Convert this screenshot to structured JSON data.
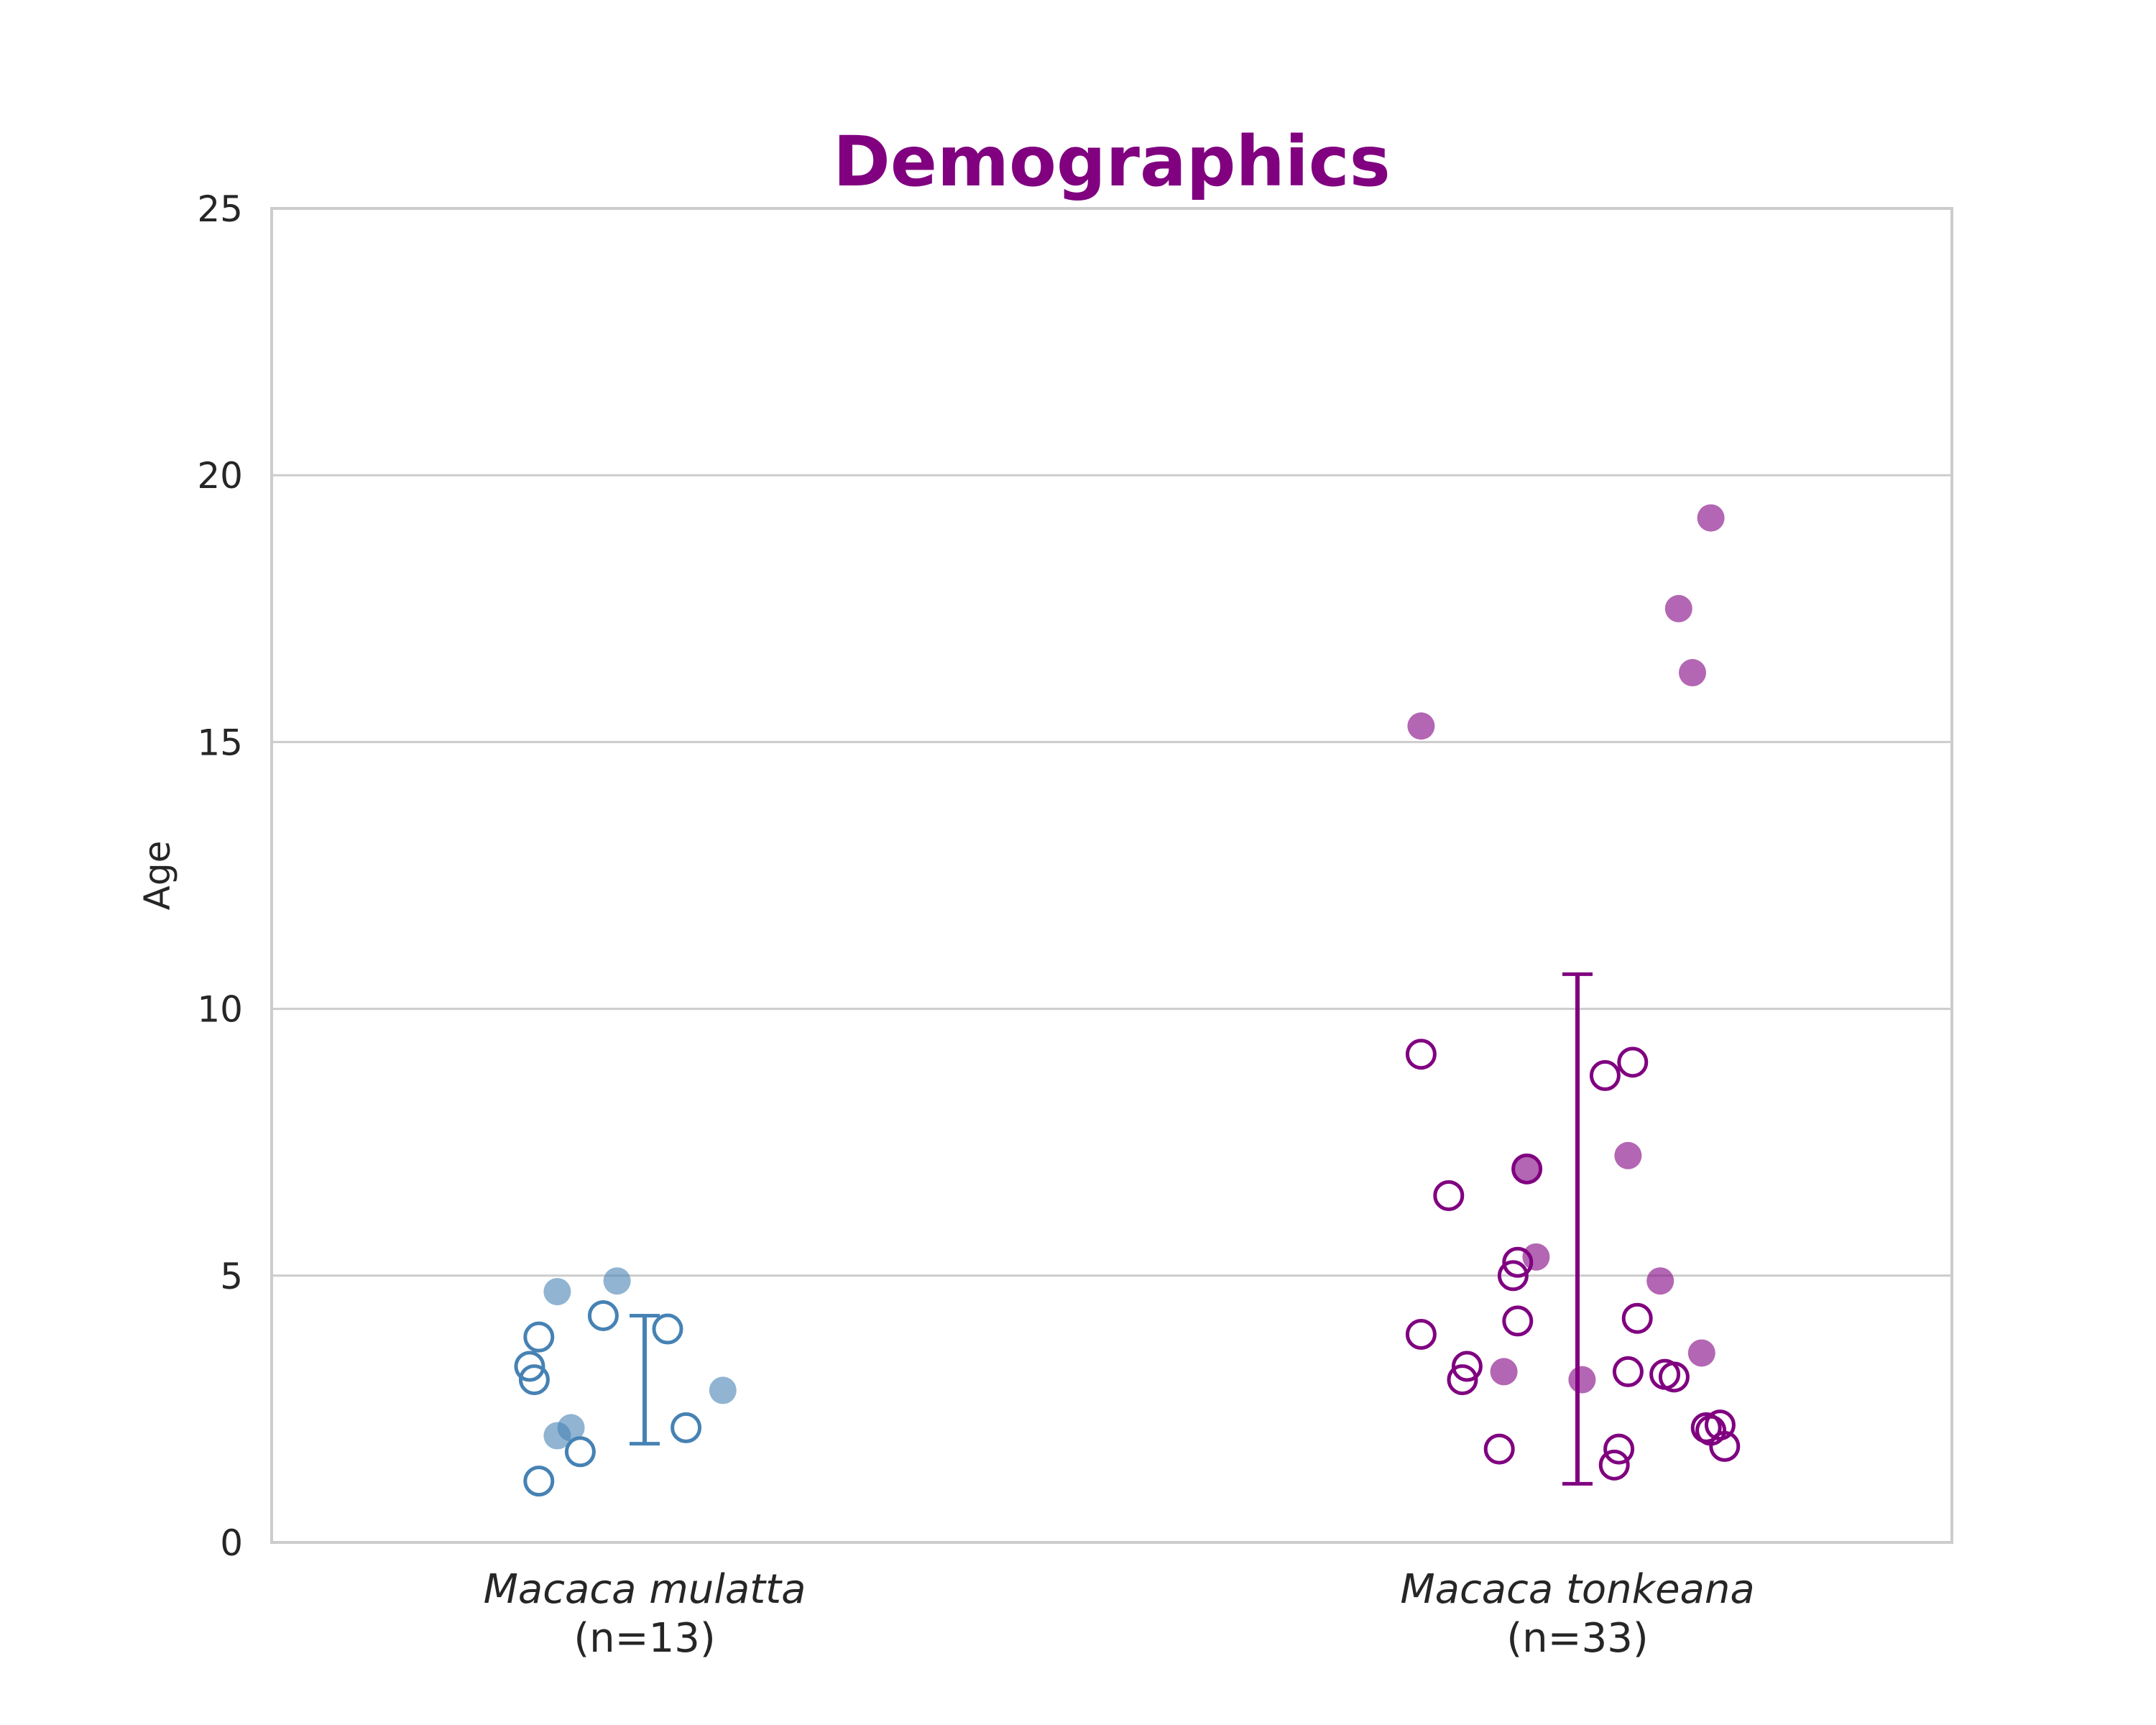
{
  "chart_data": {
    "type": "scatter",
    "title": "Demographics",
    "ylabel": "Age",
    "xlabel": "",
    "ylim": [
      0,
      25
    ],
    "yticks": [
      0,
      5,
      10,
      15,
      20,
      25
    ],
    "grid": "horizontal",
    "title_color": "#800080",
    "categories": [
      {
        "name": "Macaca mulatta",
        "n_label": "(n=13)"
      },
      {
        "name": "Macaca tonkeana",
        "n_label": "(n=33)"
      }
    ],
    "series": [
      {
        "category": "Macaca mulatta",
        "color": "#4682b4",
        "errorbar": {
          "low": 1.85,
          "high": 4.25
        },
        "points": [
          {
            "jitter": -0.19,
            "y": 4.7,
            "filled": true
          },
          {
            "jitter": -0.06,
            "y": 4.9,
            "filled": true
          },
          {
            "jitter": 0.17,
            "y": 2.85,
            "filled": true
          },
          {
            "jitter": -0.16,
            "y": 2.15,
            "filled": true
          },
          {
            "jitter": -0.19,
            "y": 2.0,
            "filled": true
          },
          {
            "jitter": -0.09,
            "y": 4.25,
            "filled": false
          },
          {
            "jitter": 0.05,
            "y": 4.0,
            "filled": false
          },
          {
            "jitter": -0.23,
            "y": 3.85,
            "filled": false
          },
          {
            "jitter": -0.25,
            "y": 3.3,
            "filled": false
          },
          {
            "jitter": -0.24,
            "y": 3.05,
            "filled": false
          },
          {
            "jitter": 0.09,
            "y": 2.15,
            "filled": false
          },
          {
            "jitter": -0.14,
            "y": 1.7,
            "filled": false
          },
          {
            "jitter": -0.23,
            "y": 1.15,
            "filled": false
          }
        ]
      },
      {
        "category": "Macaca tonkeana",
        "color": "#800080",
        "errorbar": {
          "low": 1.1,
          "high": 10.65
        },
        "points": [
          {
            "jitter": 0.29,
            "y": 19.2,
            "filled": true
          },
          {
            "jitter": 0.22,
            "y": 17.5,
            "filled": true
          },
          {
            "jitter": 0.25,
            "y": 16.3,
            "filled": true
          },
          {
            "jitter": -0.34,
            "y": 15.3,
            "filled": true
          },
          {
            "jitter": 0.11,
            "y": 7.25,
            "filled": true
          },
          {
            "jitter": -0.11,
            "y": 7.0,
            "filled": true
          },
          {
            "jitter": -0.09,
            "y": 5.35,
            "filled": true
          },
          {
            "jitter": 0.18,
            "y": 4.9,
            "filled": true
          },
          {
            "jitter": 0.27,
            "y": 3.55,
            "filled": true
          },
          {
            "jitter": -0.16,
            "y": 3.2,
            "filled": true
          },
          {
            "jitter": 0.01,
            "y": 3.05,
            "filled": true
          },
          {
            "jitter": -0.34,
            "y": 9.15,
            "filled": false
          },
          {
            "jitter": 0.12,
            "y": 9.0,
            "filled": false
          },
          {
            "jitter": 0.06,
            "y": 8.75,
            "filled": false
          },
          {
            "jitter": -0.11,
            "y": 7.0,
            "filled": false
          },
          {
            "jitter": -0.28,
            "y": 6.5,
            "filled": false
          },
          {
            "jitter": -0.13,
            "y": 5.25,
            "filled": false
          },
          {
            "jitter": -0.14,
            "y": 5.0,
            "filled": false
          },
          {
            "jitter": 0.13,
            "y": 4.2,
            "filled": false
          },
          {
            "jitter": -0.13,
            "y": 4.15,
            "filled": false
          },
          {
            "jitter": -0.34,
            "y": 3.9,
            "filled": false
          },
          {
            "jitter": -0.24,
            "y": 3.3,
            "filled": false
          },
          {
            "jitter": 0.11,
            "y": 3.2,
            "filled": false
          },
          {
            "jitter": 0.19,
            "y": 3.15,
            "filled": false
          },
          {
            "jitter": 0.21,
            "y": 3.1,
            "filled": false
          },
          {
            "jitter": -0.25,
            "y": 3.05,
            "filled": false
          },
          {
            "jitter": 0.31,
            "y": 2.2,
            "filled": false
          },
          {
            "jitter": 0.28,
            "y": 2.15,
            "filled": false
          },
          {
            "jitter": 0.29,
            "y": 2.1,
            "filled": false
          },
          {
            "jitter": 0.32,
            "y": 1.8,
            "filled": false
          },
          {
            "jitter": -0.17,
            "y": 1.75,
            "filled": false
          },
          {
            "jitter": 0.09,
            "y": 1.75,
            "filled": false
          },
          {
            "jitter": 0.08,
            "y": 1.45,
            "filled": false
          }
        ]
      }
    ]
  }
}
